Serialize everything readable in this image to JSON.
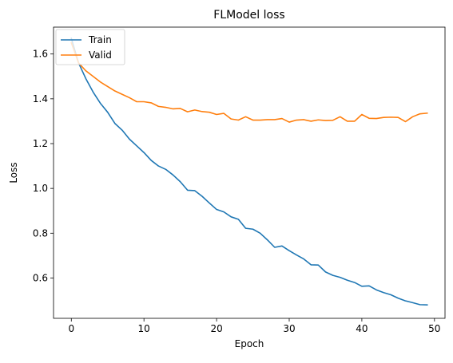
{
  "chart_data": {
    "type": "line",
    "title": "FLModel loss",
    "xlabel": "Epoch",
    "ylabel": "Loss",
    "xlim": [
      -2.45,
      51.45
    ],
    "ylim": [
      0.42,
      1.72
    ],
    "xticks": [
      0,
      10,
      20,
      30,
      40,
      50
    ],
    "yticks": [
      0.6,
      0.8,
      1.0,
      1.2,
      1.4,
      1.6
    ],
    "ytick_labels": [
      "0.6",
      "0.8",
      "1.0",
      "1.2",
      "1.4",
      "1.6"
    ],
    "grid": false,
    "legend_position": "top-left",
    "x": [
      0,
      1,
      2,
      3,
      4,
      5,
      6,
      7,
      8,
      9,
      10,
      11,
      12,
      13,
      14,
      15,
      16,
      17,
      18,
      19,
      20,
      21,
      22,
      23,
      24,
      25,
      26,
      27,
      28,
      29,
      30,
      31,
      32,
      33,
      34,
      35,
      36,
      37,
      38,
      39,
      40,
      41,
      42,
      43,
      44,
      45,
      46,
      47,
      48,
      49
    ],
    "series": [
      {
        "name": "Train",
        "color": "#1f77b4",
        "values": [
          1.67,
          1.56,
          1.49,
          1.43,
          1.38,
          1.34,
          1.29,
          1.26,
          1.22,
          1.19,
          1.16,
          1.125,
          1.1,
          1.085,
          1.06,
          1.03,
          0.992,
          0.99,
          0.965,
          0.935,
          0.906,
          0.895,
          0.873,
          0.862,
          0.822,
          0.818,
          0.8,
          0.77,
          0.737,
          0.743,
          0.722,
          0.703,
          0.685,
          0.659,
          0.658,
          0.627,
          0.612,
          0.603,
          0.59,
          0.58,
          0.563,
          0.565,
          0.547,
          0.535,
          0.525,
          0.51,
          0.498,
          0.49,
          0.481,
          0.48
        ]
      },
      {
        "name": "Valid",
        "color": "#ff7f0e",
        "values": [
          1.65,
          1.56,
          1.525,
          1.5,
          1.475,
          1.455,
          1.435,
          1.42,
          1.405,
          1.387,
          1.387,
          1.382,
          1.366,
          1.362,
          1.355,
          1.357,
          1.342,
          1.35,
          1.343,
          1.34,
          1.33,
          1.335,
          1.31,
          1.305,
          1.32,
          1.305,
          1.305,
          1.307,
          1.307,
          1.312,
          1.296,
          1.305,
          1.307,
          1.3,
          1.306,
          1.303,
          1.304,
          1.32,
          1.3,
          1.3,
          1.33,
          1.313,
          1.312,
          1.317,
          1.318,
          1.317,
          1.298,
          1.32,
          1.333,
          1.336
        ]
      }
    ]
  }
}
